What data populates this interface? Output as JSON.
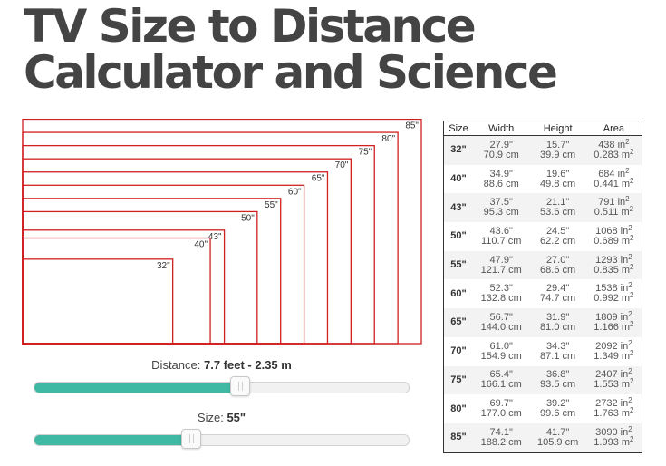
{
  "page": {
    "title_line1": "TV Size to Distance",
    "title_line2": "Calculator and Science"
  },
  "colors": {
    "rect_stroke": "#d02020",
    "slider_fill": "#3fb8a4"
  },
  "tv_sizes": [
    {
      "label": "32\"",
      "inches": 32
    },
    {
      "label": "40\"",
      "inches": 40
    },
    {
      "label": "43\"",
      "inches": 43
    },
    {
      "label": "50\"",
      "inches": 50
    },
    {
      "label": "55\"",
      "inches": 55
    },
    {
      "label": "60\"",
      "inches": 60
    },
    {
      "label": "65\"",
      "inches": 65
    },
    {
      "label": "70\"",
      "inches": 70
    },
    {
      "label": "75\"",
      "inches": 75
    },
    {
      "label": "80\"",
      "inches": 80
    },
    {
      "label": "85\"",
      "inches": 85
    }
  ],
  "distance_slider": {
    "label": "Distance:",
    "value": "7.7 feet - 2.35 m",
    "fill_fraction": 0.55
  },
  "size_slider": {
    "label": "Size:",
    "value": "55\"",
    "fill_fraction": 0.42
  },
  "table": {
    "headers": {
      "size": "Size",
      "width": "Width",
      "height": "Height",
      "area": "Area"
    },
    "rows": [
      {
        "size": "32\"",
        "width_in": "27.9\"",
        "width_cm": "70.9 cm",
        "height_in": "15.7\"",
        "height_cm": "39.9 cm",
        "area_in": "438 in",
        "area_m": "0.283 m"
      },
      {
        "size": "40\"",
        "width_in": "34.9\"",
        "width_cm": "88.6 cm",
        "height_in": "19.6\"",
        "height_cm": "49.8 cm",
        "area_in": "684 in",
        "area_m": "0.441 m"
      },
      {
        "size": "43\"",
        "width_in": "37.5\"",
        "width_cm": "95.3 cm",
        "height_in": "21.1\"",
        "height_cm": "53.6 cm",
        "area_in": "791 in",
        "area_m": "0.511 m"
      },
      {
        "size": "50\"",
        "width_in": "43.6\"",
        "width_cm": "110.7 cm",
        "height_in": "24.5\"",
        "height_cm": "62.2 cm",
        "area_in": "1068 in",
        "area_m": "0.689 m"
      },
      {
        "size": "55\"",
        "width_in": "47.9\"",
        "width_cm": "121.7 cm",
        "height_in": "27.0\"",
        "height_cm": "68.6 cm",
        "area_in": "1293 in",
        "area_m": "0.835 m"
      },
      {
        "size": "60\"",
        "width_in": "52.3\"",
        "width_cm": "132.8 cm",
        "height_in": "29.4\"",
        "height_cm": "74.7 cm",
        "area_in": "1538 in",
        "area_m": "0.992 m"
      },
      {
        "size": "65\"",
        "width_in": "56.7\"",
        "width_cm": "144.0 cm",
        "height_in": "31.9\"",
        "height_cm": "81.0 cm",
        "area_in": "1809 in",
        "area_m": "1.166 m"
      },
      {
        "size": "70\"",
        "width_in": "61.0\"",
        "width_cm": "154.9 cm",
        "height_in": "34.3\"",
        "height_cm": "87.1 cm",
        "area_in": "2092 in",
        "area_m": "1.349 m"
      },
      {
        "size": "75\"",
        "width_in": "65.4\"",
        "width_cm": "166.1 cm",
        "height_in": "36.8\"",
        "height_cm": "93.5 cm",
        "area_in": "2407 in",
        "area_m": "1.553 m"
      },
      {
        "size": "80\"",
        "width_in": "69.7\"",
        "width_cm": "177.0 cm",
        "height_in": "39.2\"",
        "height_cm": "99.6 cm",
        "area_in": "2732 in",
        "area_m": "1.763 m"
      },
      {
        "size": "85\"",
        "width_in": "74.1\"",
        "width_cm": "188.2 cm",
        "height_in": "41.7\"",
        "height_cm": "105.9 cm",
        "area_in": "3090 in",
        "area_m": "1.993 m"
      }
    ]
  }
}
